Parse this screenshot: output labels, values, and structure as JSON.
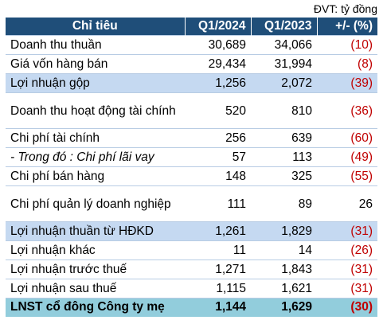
{
  "unit_label": "ĐVT: tỷ đồng",
  "headers": [
    "Chỉ tiêu",
    "Q1/2024",
    "Q1/2023",
    "+/- (%)"
  ],
  "rows": [
    {
      "label": "Doanh thu thuần",
      "q1_2024": "30,689",
      "q1_2023": "34,066",
      "change": "(10)"
    },
    {
      "label": "Giá vốn hàng bán",
      "q1_2024": "29,434",
      "q1_2023": "31,994",
      "change": "(8)"
    },
    {
      "label": "Lợi nhuận gộp",
      "q1_2024": "1,256",
      "q1_2023": "2,072",
      "change": "(39)"
    },
    {
      "label": "Doanh thu hoạt động tài chính",
      "q1_2024": "520",
      "q1_2023": "810",
      "change": "(36)"
    },
    {
      "label": "Chi phí tài chính",
      "q1_2024": "256",
      "q1_2023": "639",
      "change": "(60)"
    },
    {
      "label": "- Trong đó : Chi phí lãi vay",
      "q1_2024": "57",
      "q1_2023": "113",
      "change": "(49)"
    },
    {
      "label": "Chi phí bán hàng",
      "q1_2024": "148",
      "q1_2023": "325",
      "change": "(55)"
    },
    {
      "label": "Chi phí quản lý doanh nghiệp",
      "q1_2024": "111",
      "q1_2023": "89",
      "change": "26"
    },
    {
      "label": "Lợi nhuận thuần từ HĐKD",
      "q1_2024": "1,261",
      "q1_2023": "1,829",
      "change": "(31)"
    },
    {
      "label": "Lợi nhuận khác",
      "q1_2024": "11",
      "q1_2023": "14",
      "change": "(26)"
    },
    {
      "label": "Lợi nhuận trước thuế",
      "q1_2024": "1,271",
      "q1_2023": "1,843",
      "change": "(31)"
    },
    {
      "label": "Lợi nhuận sau thuế",
      "q1_2024": "1,115",
      "q1_2023": "1,621",
      "change": "(31)"
    },
    {
      "label": "LNST cổ đông Công ty mẹ",
      "q1_2024": "1,144",
      "q1_2023": "1,629",
      "change": "(30)"
    }
  ],
  "colors": {
    "header_bg": "#1f4e79",
    "highlight_bg": "#c5d9f1",
    "total_bg": "#92cddc",
    "negative": "#c00000"
  }
}
